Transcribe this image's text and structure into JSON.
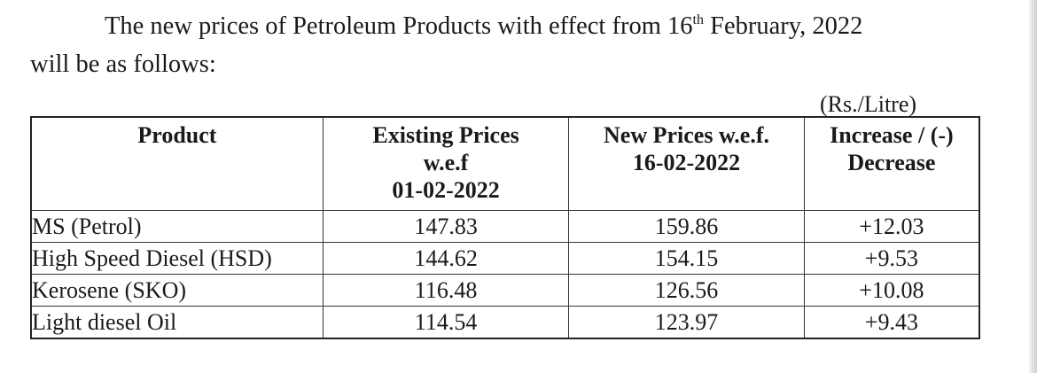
{
  "notice": {
    "line1_prefix": "The new prices of Petroleum Products with effect from 16",
    "line1_superscript": "th",
    "line1_suffix": " February, 2022",
    "line2": "will be as follows:"
  },
  "unit_note": "(Rs./Litre)",
  "table": {
    "headers": {
      "product": "Product",
      "existing": [
        "Existing Prices",
        "w.e.f",
        "01-02-2022"
      ],
      "new": [
        "New Prices w.e.f.",
        "16-02-2022"
      ],
      "change": [
        "Increase / (-)",
        "Decrease"
      ]
    },
    "rows": [
      {
        "product": "MS (Petrol)",
        "existing": "147.83",
        "new": "159.86",
        "change": "+12.03"
      },
      {
        "product": "High Speed Diesel (HSD)",
        "existing": "144.62",
        "new": "154.15",
        "change": "+9.53"
      },
      {
        "product": "Kerosene (SKO)",
        "existing": "116.48",
        "new": "126.56",
        "change": "+10.08"
      },
      {
        "product": "Light diesel Oil",
        "existing": "114.54",
        "new": "123.97",
        "change": "+9.43"
      }
    ]
  }
}
